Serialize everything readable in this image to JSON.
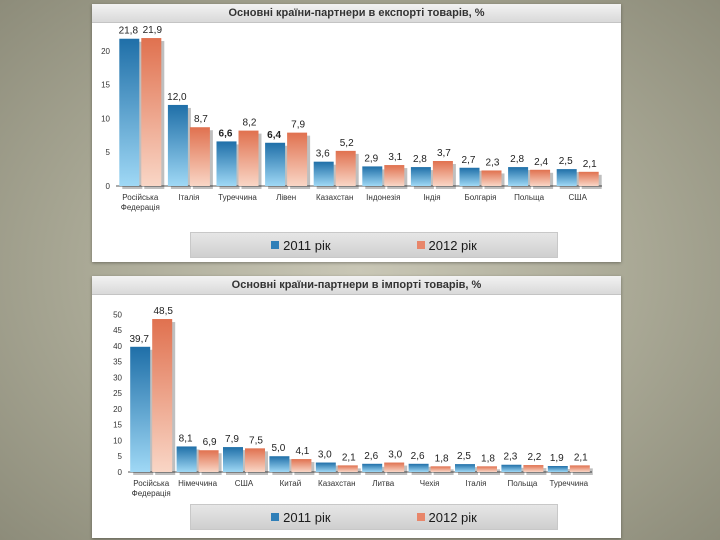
{
  "chart_data": [
    {
      "type": "bar",
      "title": "Основні країни-партнери в експорті товарів, %",
      "categories": [
        "Російська Федерація",
        "Італія",
        "Туреччина",
        "Лівен",
        "Казахстан",
        "Індонезія",
        "Індія",
        "Болгарія",
        "Польща",
        "США"
      ],
      "series": [
        {
          "name": "2011 рік",
          "values": [
            21.8,
            12.0,
            6.6,
            6.4,
            3.6,
            2.9,
            2.8,
            2.7,
            2.8,
            2.5
          ],
          "labels": [
            "21,8",
            "12,0",
            "6,6",
            "6,4",
            "3,6",
            "2,9",
            "2,8",
            "2,7",
            "2,8",
            "2,5"
          ],
          "color": "#2f7fb8"
        },
        {
          "name": "2012 рік",
          "values": [
            21.9,
            8.7,
            8.2,
            7.9,
            5.2,
            3.1,
            3.7,
            2.3,
            2.4,
            2.1
          ],
          "labels": [
            "21,9",
            "8,7",
            "8,2",
            "7,9",
            "5,2",
            "3,1",
            "3,7",
            "2,3",
            "2,4",
            "2,1"
          ],
          "color": "#e8866a"
        }
      ],
      "yticks": [
        0,
        5,
        10,
        15,
        20
      ],
      "ylim": [
        0,
        22.5
      ],
      "grid": false,
      "legend": "bottom"
    },
    {
      "type": "bar",
      "title": "Основні країни-партнери в імпорті товарів, %",
      "categories": [
        "Російська Федерація",
        "Німеччина",
        "США",
        "Китай",
        "Казахстан",
        "Литва",
        "Чехія",
        "Італія",
        "Польща",
        "Туреччина"
      ],
      "series": [
        {
          "name": "2011 рік",
          "values": [
            39.7,
            8.1,
            7.9,
            5.0,
            3.0,
            2.6,
            2.6,
            2.5,
            2.3,
            1.9
          ],
          "labels": [
            "39,7",
            "8,1",
            "7,9",
            "5,0",
            "3,0",
            "2,6",
            "2,6",
            "2,5",
            "2,3",
            "1,9"
          ],
          "color": "#2f7fb8"
        },
        {
          "name": "2012 рік",
          "values": [
            48.5,
            6.9,
            7.5,
            4.1,
            2.1,
            3.0,
            1.8,
            1.8,
            2.2,
            2.1
          ],
          "labels": [
            "48,5",
            "6,9",
            "7,5",
            "4,1",
            "2,1",
            "3,0",
            "1,8",
            "1,8",
            "2,2",
            "2,1"
          ],
          "color": "#e8866a"
        }
      ],
      "yticks": [
        0,
        5,
        10,
        15,
        20,
        25,
        30,
        35,
        40,
        45,
        50
      ],
      "ylim": [
        0,
        52
      ],
      "grid": false,
      "legend": "bottom"
    }
  ]
}
